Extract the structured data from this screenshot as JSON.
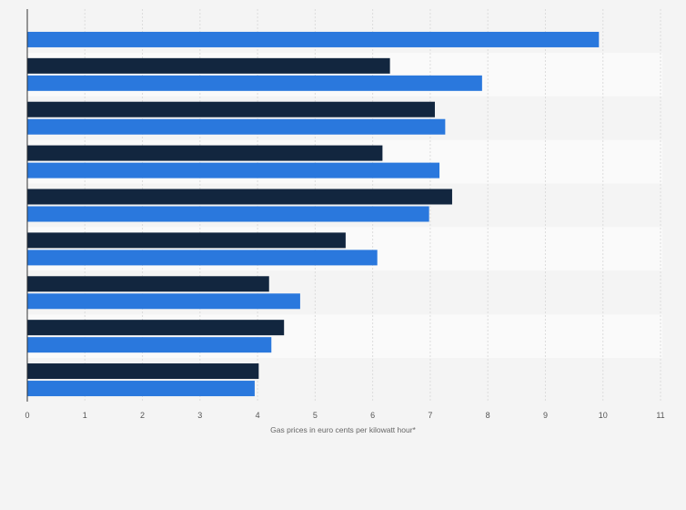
{
  "chart_data": {
    "type": "bar",
    "orientation": "horizontal",
    "categories": [
      "",
      "",
      "",
      "",
      "",
      "",
      "",
      "",
      ""
    ],
    "series": [
      {
        "color": "#12263f",
        "values": [
          null,
          6.3,
          7.08,
          6.17,
          7.38,
          5.53,
          4.2,
          4.46,
          4.02
        ]
      },
      {
        "color": "#2a78dd",
        "values": [
          9.93,
          7.9,
          7.26,
          7.16,
          6.98,
          6.08,
          4.74,
          4.24,
          3.95
        ]
      }
    ],
    "xlim": [
      0,
      11
    ],
    "x_ticks": [
      0,
      1,
      2,
      3,
      4,
      5,
      6,
      7,
      8,
      9,
      10,
      11
    ],
    "xlabel": "Gas prices in euro cents per kilowatt hour*",
    "ylabel": "",
    "title": "",
    "grid": true,
    "legend": "none"
  }
}
